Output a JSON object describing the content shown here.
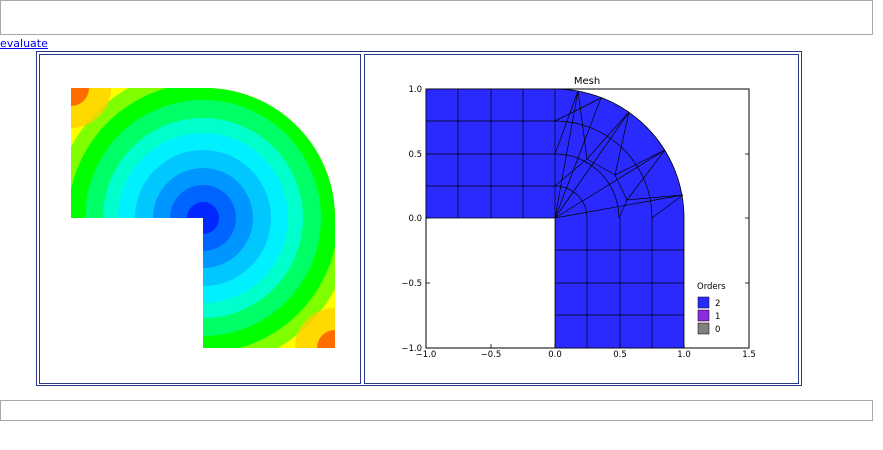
{
  "link": {
    "evaluate_label": "evaluate"
  },
  "mesh_plot": {
    "title": "Mesh",
    "x_ticks": [
      "−1.0",
      "−0.5",
      "0.0",
      "0.5",
      "1.0",
      "1.5"
    ],
    "y_ticks": [
      "1.0",
      "0.5",
      "0.0",
      "−0.5",
      "−1.0"
    ],
    "legend": {
      "title": "Orders",
      "items": [
        {
          "label": "2",
          "color": "#2a2aff"
        },
        {
          "label": "1",
          "color": "#8a2be2"
        },
        {
          "label": "0",
          "color": "#808080"
        }
      ]
    },
    "fill_color": "#2a2aff"
  },
  "solution_plot": {
    "colormap": [
      "#0000ff",
      "#00ffff",
      "#00ff00",
      "#ffff00",
      "#ff0000"
    ]
  }
}
